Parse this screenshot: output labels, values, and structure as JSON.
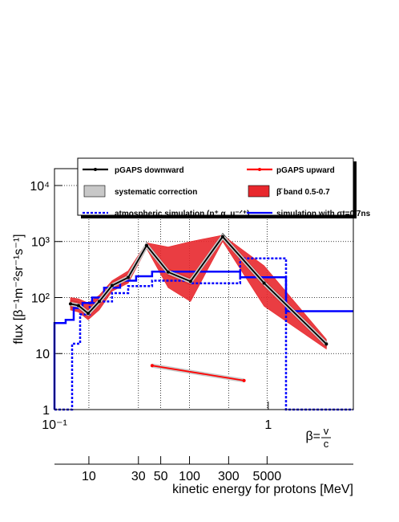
{
  "chart_data": {
    "type": "line",
    "ylabel": "flux [β⁻¹m⁻²sr⁻¹s⁻¹]",
    "xlabel": "β=",
    "xlabel_num": "v",
    "xlabel_den": "c",
    "log_x": true,
    "log_y": true,
    "grid": true,
    "xlim": [
      0.1,
      2.5
    ],
    "ylim": [
      1,
      20000
    ],
    "xticks": [
      {
        "value": 0.1,
        "label": "10⁻¹"
      },
      1
    ],
    "yticks": [
      1,
      10,
      {
        "value": 100,
        "label": "10²"
      },
      {
        "value": 1000,
        "label": "10³"
      },
      {
        "value": 10000,
        "label": "10⁴"
      }
    ],
    "energy_axis": {
      "label": "kinetic energy for protons [MeV]",
      "ticks": [
        10,
        30,
        50,
        100,
        300,
        5000
      ]
    },
    "series": [
      {
        "name": "pGAPS downward",
        "kind": "line",
        "color": "#000000",
        "x": [
          0.1188,
          0.1295,
          0.1437,
          0.162,
          0.186,
          0.2212,
          0.2697,
          0.3401,
          0.433,
          0.612,
          0.956,
          1.87
        ],
        "values": [
          77,
          72,
          52,
          85,
          164,
          228,
          850,
          285,
          194,
          1220,
          181,
          14.8
        ]
      },
      {
        "name": "pGAPS upward",
        "kind": "line",
        "color": "#ff0000",
        "x": [
          0.2862,
          0.7706
        ],
        "values": [
          6.1,
          3.3
        ]
      },
      {
        "name": "systematic correction",
        "kind": "band",
        "color": "#c8c8c8",
        "x": [
          0.1188,
          0.1295,
          0.1437,
          0.162,
          0.186,
          0.2212,
          0.2697,
          0.3401,
          0.433,
          0.612,
          0.956,
          1.87
        ],
        "upper": [
          89,
          83,
          60,
          98,
          189,
          262,
          978,
          328,
          223,
          1403,
          208,
          17
        ],
        "lower": [
          67,
          63,
          45,
          74,
          143,
          198,
          740,
          248,
          169,
          1061,
          157,
          12.9
        ]
      },
      {
        "name": "β̄ band 0.5-0.7",
        "kind": "band",
        "color": "#e8282d",
        "x": [
          0.1188,
          0.1295,
          0.1437,
          0.162,
          0.186,
          0.2212,
          0.2697,
          0.3401,
          0.433,
          0.612,
          0.956,
          1.87
        ],
        "upper": [
          100,
          95,
          80,
          110,
          200,
          300,
          950,
          800,
          1000,
          1300,
          370,
          18
        ],
        "lower": [
          60,
          55,
          40,
          60,
          130,
          180,
          750,
          150,
          85,
          1000,
          70,
          12
        ]
      },
      {
        "name": "atmospheric simulation (p⁺,α, μ⁻ᐟ⁺)",
        "kind": "step",
        "dashed": true,
        "color": "#0000ff",
        "bins": [
          0.1,
          0.1209,
          0.1318,
          0.1462,
          0.1635,
          0.1859,
          0.2212,
          0.2862,
          0.4403,
          0.739,
          1.2107,
          2.5
        ],
        "values": [
          1,
          15,
          50,
          80,
          85,
          120,
          160,
          200,
          180,
          500,
          1
        ]
      },
      {
        "name": "simulation with σt=0.7ns",
        "kind": "step",
        "dashed": false,
        "color": "#0000ff",
        "bins": [
          0.1,
          0.1128,
          0.123,
          0.1352,
          0.15,
          0.1706,
          0.2028,
          0.2409,
          0.2862,
          0.739,
          1.2107,
          2.5
        ],
        "values": [
          35,
          40,
          65,
          80,
          100,
          150,
          200,
          240,
          290,
          230,
          57
        ]
      }
    ]
  }
}
